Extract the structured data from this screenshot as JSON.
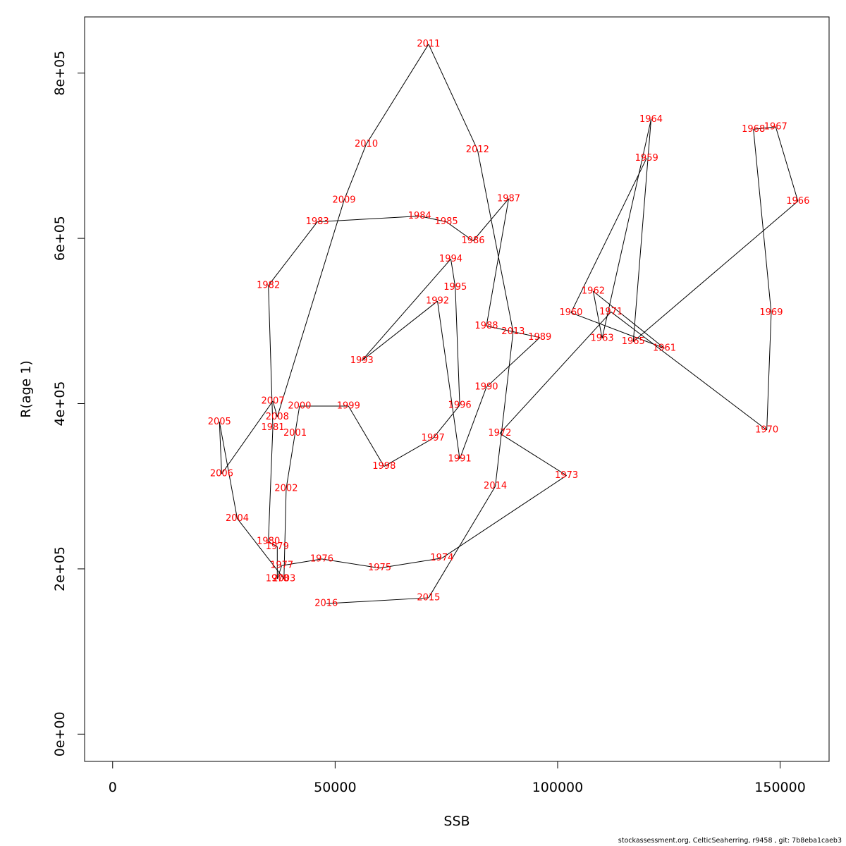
{
  "footer": "stockassessment.org, CelticSeaherring, r9458 , git: 7b8eba1caeb3",
  "chart_data": {
    "type": "line",
    "xlabel": "SSB",
    "ylabel": "R(age 1)",
    "xlim": [
      -6300,
      161000
    ],
    "ylim": [
      -33000,
      868000
    ],
    "xticks": [
      0,
      50000,
      100000,
      150000
    ],
    "xtick_labels": [
      "0",
      "50000",
      "100000",
      "150000"
    ],
    "yticks": [
      0,
      200000,
      400000,
      600000,
      800000
    ],
    "ytick_labels": [
      "0e+00",
      "2e+05",
      "4e+05",
      "6e+05",
      "8e+05"
    ],
    "grid": false,
    "series": [
      {
        "points": [
          {
            "year": "1959",
            "x": 120000,
            "y": 697000
          },
          {
            "year": "1960",
            "x": 103000,
            "y": 510000
          },
          {
            "year": "1961",
            "x": 124000,
            "y": 467000
          },
          {
            "year": "1962",
            "x": 108000,
            "y": 536000
          },
          {
            "year": "1963",
            "x": 110000,
            "y": 479000
          },
          {
            "year": "1964",
            "x": 121000,
            "y": 744000
          },
          {
            "year": "1965",
            "x": 117000,
            "y": 475000
          },
          {
            "year": "1966",
            "x": 154000,
            "y": 645000
          },
          {
            "year": "1967",
            "x": 149000,
            "y": 735000
          },
          {
            "year": "1968",
            "x": 144000,
            "y": 732000
          },
          {
            "year": "1969",
            "x": 148000,
            "y": 510000
          },
          {
            "year": "1970",
            "x": 147000,
            "y": 368000
          },
          {
            "year": "1971",
            "x": 112000,
            "y": 511000
          },
          {
            "year": "1972",
            "x": 87000,
            "y": 364000
          },
          {
            "year": "1973",
            "x": 102000,
            "y": 313000
          },
          {
            "year": "1974",
            "x": 74000,
            "y": 213000
          },
          {
            "year": "1975",
            "x": 60000,
            "y": 201000
          },
          {
            "year": "1976",
            "x": 47000,
            "y": 212000
          },
          {
            "year": "1977",
            "x": 38000,
            "y": 204000
          },
          {
            "year": "1978",
            "x": 37000,
            "y": 188000
          },
          {
            "year": "1979",
            "x": 37000,
            "y": 227000
          },
          {
            "year": "1980",
            "x": 35000,
            "y": 233000
          },
          {
            "year": "1981",
            "x": 36000,
            "y": 371000
          },
          {
            "year": "1982",
            "x": 35000,
            "y": 543000
          },
          {
            "year": "1983",
            "x": 46000,
            "y": 620000
          },
          {
            "year": "1984",
            "x": 69000,
            "y": 627000
          },
          {
            "year": "1985",
            "x": 75000,
            "y": 620000
          },
          {
            "year": "1986",
            "x": 81000,
            "y": 597000
          },
          {
            "year": "1987",
            "x": 89000,
            "y": 648000
          },
          {
            "year": "1988",
            "x": 84000,
            "y": 494000
          },
          {
            "year": "1989",
            "x": 96000,
            "y": 480000
          },
          {
            "year": "1990",
            "x": 84000,
            "y": 420000
          },
          {
            "year": "1991",
            "x": 78000,
            "y": 333000
          },
          {
            "year": "1992",
            "x": 73000,
            "y": 524000
          },
          {
            "year": "1993",
            "x": 56000,
            "y": 452000
          },
          {
            "year": "1994",
            "x": 76000,
            "y": 575000
          },
          {
            "year": "1995",
            "x": 77000,
            "y": 541000
          },
          {
            "year": "1996",
            "x": 78000,
            "y": 398000
          },
          {
            "year": "1997",
            "x": 72000,
            "y": 358000
          },
          {
            "year": "1998",
            "x": 61000,
            "y": 324000
          },
          {
            "year": "1999",
            "x": 53000,
            "y": 397000
          },
          {
            "year": "2000",
            "x": 42000,
            "y": 397000
          },
          {
            "year": "2001",
            "x": 41000,
            "y": 364000
          },
          {
            "year": "2002",
            "x": 39000,
            "y": 297000
          },
          {
            "year": "2003",
            "x": 38500,
            "y": 188000
          },
          {
            "year": "2004",
            "x": 28000,
            "y": 261000
          },
          {
            "year": "2005",
            "x": 24000,
            "y": 378000
          },
          {
            "year": "2006",
            "x": 24500,
            "y": 315000
          },
          {
            "year": "2007",
            "x": 36000,
            "y": 403000
          },
          {
            "year": "2008",
            "x": 37000,
            "y": 384000
          },
          {
            "year": "2009",
            "x": 52000,
            "y": 646000
          },
          {
            "year": "2010",
            "x": 57000,
            "y": 714000
          },
          {
            "year": "2011",
            "x": 71000,
            "y": 835000
          },
          {
            "year": "2012",
            "x": 82000,
            "y": 707000
          },
          {
            "year": "2013",
            "x": 90000,
            "y": 487000
          },
          {
            "year": "2014",
            "x": 86000,
            "y": 300000
          },
          {
            "year": "2015",
            "x": 71000,
            "y": 165000
          },
          {
            "year": "2016",
            "x": 48000,
            "y": 158000
          }
        ]
      }
    ]
  }
}
